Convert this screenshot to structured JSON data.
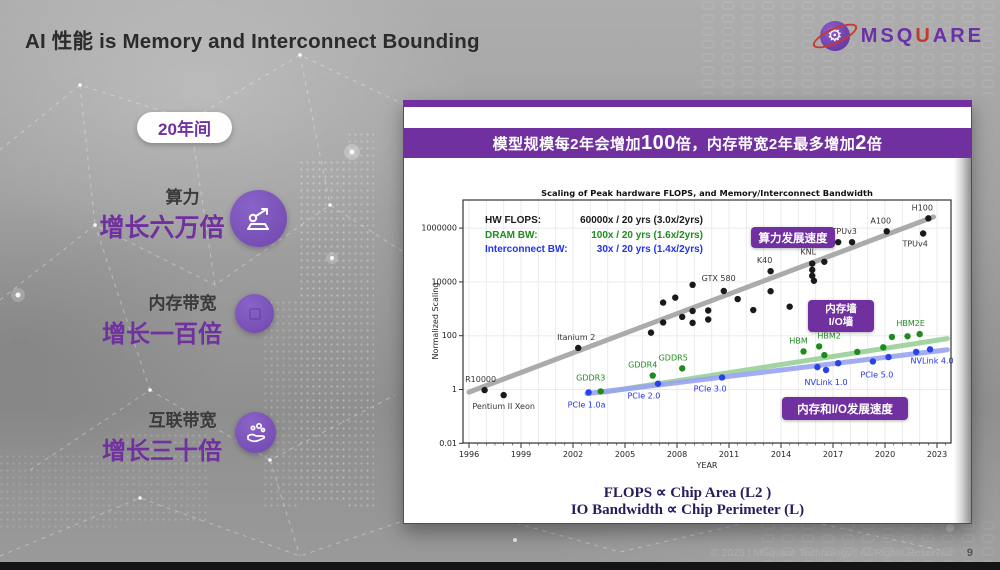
{
  "slide": {
    "title": "AI 性能 is Memory and Interconnect Bounding",
    "footer_text": "© 2025 | MSquare Technology | All Rights Reserved",
    "page_number": "9"
  },
  "logo": {
    "segments": [
      {
        "t": "MSQ",
        "c": "#6a30a8"
      },
      {
        "t": "U",
        "c": "#c23a2e"
      },
      {
        "t": "ARE",
        "c": "#6a30a8"
      }
    ]
  },
  "left_panel": {
    "duration_badge": "20年间",
    "stats": [
      {
        "label": "算力",
        "value": "增长六万倍"
      },
      {
        "label": "内存带宽",
        "value": "增长一百倍"
      },
      {
        "label": "互联带宽",
        "value": "增长三十倍"
      }
    ]
  },
  "card": {
    "banner_segments": [
      {
        "t": "模型规模每2年会增加"
      },
      {
        "t": "100",
        "big": true
      },
      {
        "t": "倍，内存带宽2年最多增加"
      },
      {
        "t": "2",
        "big": true
      },
      {
        "t": "倍"
      }
    ],
    "badge_compute": "算力发展速度",
    "badge_wall_line1": "内存墙",
    "badge_wall_line2": "I/O墙",
    "badge_io": "内存和I/O发展速度",
    "formula_flops": "FLOPS ∝ Chip Area (L2 )",
    "formula_io": "IO Bandwidth ∝ Chip Perimeter (L)"
  },
  "chart_data": {
    "type": "scatter",
    "title": "Scaling of Peak hardware FLOPS, and Memory/Interconnect Bandwidth",
    "xlabel": "YEAR",
    "ylabel": "Normalized Scaling",
    "x_range": [
      1995.6,
      2023.8
    ],
    "y_log_range": [
      0.01,
      10000000
    ],
    "grid": true,
    "x_ticks": [
      1996,
      1999,
      2002,
      2005,
      2008,
      2011,
      2014,
      2017,
      2020,
      2023
    ],
    "y_ticks": [
      {
        "v": 1000000,
        "label": "1000000"
      },
      {
        "v": 10000,
        "label": "10000"
      },
      {
        "v": 100,
        "label": "100"
      },
      {
        "v": 1,
        "label": "1"
      },
      {
        "v": 0.01,
        "label": "0.01"
      }
    ],
    "legend": [
      {
        "label": "HW FLOPS:",
        "value": "60000x / 20 yrs (3.0x/2yrs)",
        "color": "#1a1a1a"
      },
      {
        "label": "DRAM BW:",
        "value": "100x / 20 yrs (1.6x/2yrs)",
        "color": "#1e8c1e"
      },
      {
        "label": "Interconnect BW:",
        "value": "30x / 20 yrs (1.4x/2yrs)",
        "color": "#2233ee"
      }
    ],
    "series": [
      {
        "name": "HW FLOPS",
        "color": "#1a1a1a",
        "label_color": "#333333",
        "trend": {
          "x1": 1996.0,
          "y1": 0.8,
          "x2": 2022.8,
          "y2": 2600000,
          "color": "#a2a2a2",
          "opacity": 0.9
        },
        "points": [
          {
            "yr": 1996.9,
            "v": 0.95,
            "label": "R10000",
            "dx": -4,
            "dy": -8
          },
          {
            "yr": 1998.0,
            "v": 0.62,
            "label": "Pentium II Xeon",
            "dx": 0,
            "dy": 14
          },
          {
            "yr": 2002.3,
            "v": 35,
            "label": "Itanium 2",
            "dx": -2,
            "dy": -8
          },
          {
            "yr": 2006.5,
            "v": 130
          },
          {
            "yr": 2007.2,
            "v": 310
          },
          {
            "yr": 2007.2,
            "v": 1700
          },
          {
            "yr": 2007.9,
            "v": 2600
          },
          {
            "yr": 2008.3,
            "v": 500
          },
          {
            "yr": 2008.9,
            "v": 300
          },
          {
            "yr": 2008.9,
            "v": 830
          },
          {
            "yr": 2008.9,
            "v": 7800,
            "label": "GTX 580",
            "dx": 9,
            "dy": -4,
            "anchor": "start"
          },
          {
            "yr": 2009.8,
            "v": 400
          },
          {
            "yr": 2009.8,
            "v": 870
          },
          {
            "yr": 2010.7,
            "v": 4600
          },
          {
            "yr": 2011.5,
            "v": 2300
          },
          {
            "yr": 2012.4,
            "v": 900
          },
          {
            "yr": 2013.4,
            "v": 25000,
            "label": "K40",
            "dx": -6,
            "dy": -8
          },
          {
            "yr": 2013.4,
            "v": 4500
          },
          {
            "yr": 2014.5,
            "v": 1200
          },
          {
            "yr": 2015.8,
            "v": 48000,
            "label": "KNL",
            "dx": -4,
            "dy": -9
          },
          {
            "yr": 2015.8,
            "v": 28000
          },
          {
            "yr": 2015.8,
            "v": 17000
          },
          {
            "yr": 2015.9,
            "v": 11000
          },
          {
            "yr": 2016.5,
            "v": 56000
          },
          {
            "yr": 2017.3,
            "v": 300000,
            "label": "TPUv3",
            "dx": 6,
            "dy": -8
          },
          {
            "yr": 2018.1,
            "v": 300000
          },
          {
            "yr": 2020.1,
            "v": 760000,
            "label": "A100",
            "dx": -6,
            "dy": -8
          },
          {
            "yr": 2022.2,
            "v": 630000,
            "label": "TPUv4",
            "dx": -8,
            "dy": 13
          },
          {
            "yr": 2022.5,
            "v": 2300000,
            "label": "H100",
            "dx": -6,
            "dy": -8
          }
        ]
      },
      {
        "name": "DRAM BW",
        "color": "#1f8b1f",
        "label_color": "#1e8c1e",
        "trend": {
          "x1": 2003.8,
          "y1": 0.8,
          "x2": 2023.6,
          "y2": 78,
          "color": "#94ce94",
          "opacity": 0.85
        },
        "points": [
          {
            "yr": 2003.6,
            "v": 0.85,
            "label": "GDDR3",
            "dx": -10,
            "dy": -11
          },
          {
            "yr": 2006.6,
            "v": 3.3,
            "label": "GDDR4",
            "dx": -10,
            "dy": -8
          },
          {
            "yr": 2008.3,
            "v": 6.1,
            "label": "GDDR5",
            "dx": -9,
            "dy": -8
          },
          {
            "yr": 2015.3,
            "v": 26,
            "label": "HBM",
            "dx": -5,
            "dy": -8
          },
          {
            "yr": 2016.2,
            "v": 40,
            "label": "HBM2",
            "dx": 10,
            "dy": -8
          },
          {
            "yr": 2016.5,
            "v": 19
          },
          {
            "yr": 2018.4,
            "v": 25
          },
          {
            "yr": 2019.9,
            "v": 37
          },
          {
            "yr": 2020.4,
            "v": 90
          },
          {
            "yr": 2021.3,
            "v": 95
          },
          {
            "yr": 2022.0,
            "v": 115,
            "label": "HBM2E",
            "dx": -9,
            "dy": -8
          }
        ]
      },
      {
        "name": "Interconnect BW",
        "color": "#2742e6",
        "label_color": "#2233ee",
        "trend": {
          "x1": 2002.8,
          "y1": 0.7,
          "x2": 2023.6,
          "y2": 30,
          "color": "#9aa4f2",
          "opacity": 0.9
        },
        "points": [
          {
            "yr": 2002.9,
            "v": 0.78,
            "label": "PCIe 1.0a",
            "dx": -2,
            "dy": 15
          },
          {
            "yr": 2006.9,
            "v": 1.65,
            "label": "PCIe 2.0",
            "dx": -14,
            "dy": 15
          },
          {
            "yr": 2010.6,
            "v": 2.8,
            "label": "PCIe 3.0",
            "dx": -12,
            "dy": 14
          },
          {
            "yr": 2016.1,
            "v": 6.8
          },
          {
            "yr": 2016.6,
            "v": 5.3,
            "label": "NVLink 1.0",
            "dx": 0,
            "dy": 15
          },
          {
            "yr": 2017.3,
            "v": 9.5
          },
          {
            "yr": 2019.3,
            "v": 11,
            "label": "PCIe 5.0",
            "dx": 4,
            "dy": 16
          },
          {
            "yr": 2020.2,
            "v": 16
          },
          {
            "yr": 2021.8,
            "v": 25
          },
          {
            "yr": 2022.6,
            "v": 31,
            "label": "NVLink 4.0",
            "dx": 2,
            "dy": 14
          }
        ]
      }
    ]
  }
}
